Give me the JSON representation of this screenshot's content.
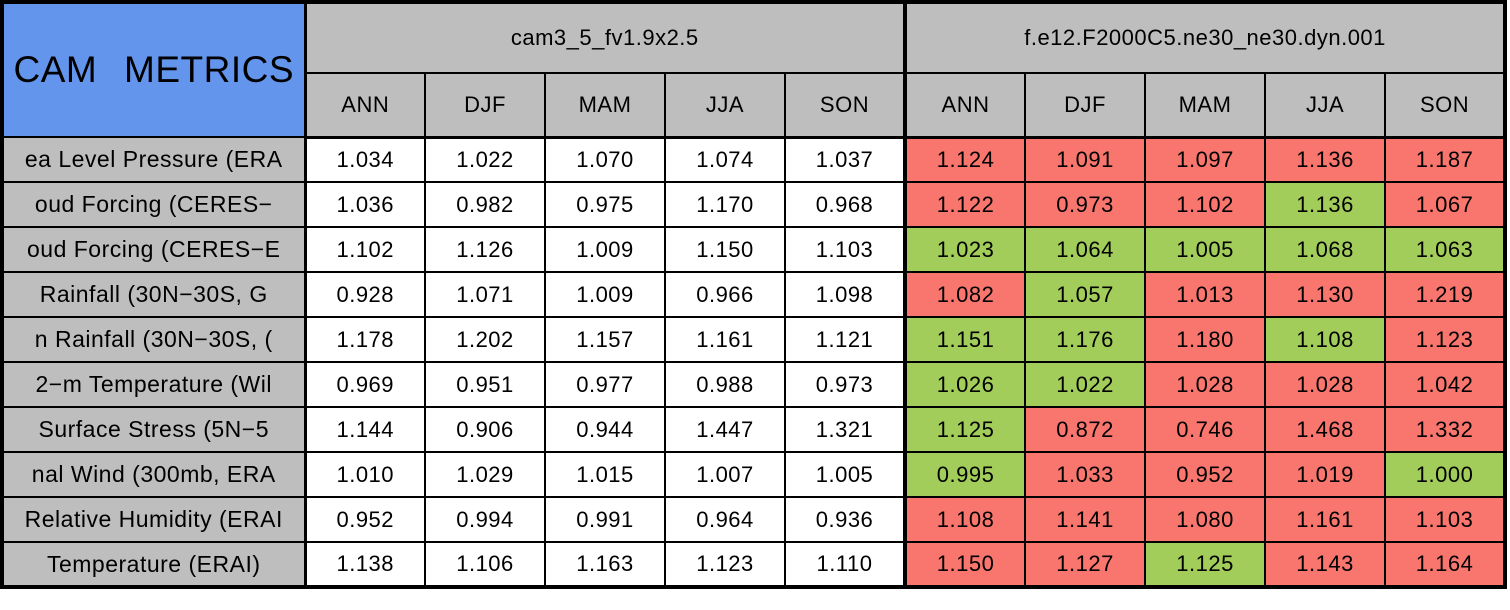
{
  "title": "CAM METRICS",
  "colors": {
    "title_bg": "#6495ED",
    "header_bg": "#BEBEBE",
    "red": "#F8766D",
    "green": "#A2CD5A",
    "border": "#000000",
    "neutral_cell": "#FFFFFF"
  },
  "chart_data": {
    "type": "table",
    "title": "CAM METRICS",
    "column_groups": [
      "cam3_5_fv1.9x2.5",
      "f.e12.F2000C5.ne30_ne30.dyn.001"
    ],
    "columns": [
      "ANN",
      "DJF",
      "MAM",
      "JJA",
      "SON",
      "ANN",
      "DJF",
      "MAM",
      "JJA",
      "SON"
    ],
    "legend_note": "left block cells white; right block cells colored red or green",
    "rows": [
      {
        "label": "ea Level Pressure (ERA",
        "values": [
          "1.034",
          "1.022",
          "1.070",
          "1.074",
          "1.037",
          "1.124",
          "1.091",
          "1.097",
          "1.136",
          "1.187"
        ],
        "cell_colors": [
          "white",
          "white",
          "white",
          "white",
          "white",
          "red",
          "red",
          "red",
          "red",
          "red"
        ]
      },
      {
        "label": "oud Forcing (CERES−",
        "values": [
          "1.036",
          "0.982",
          "0.975",
          "1.170",
          "0.968",
          "1.122",
          "0.973",
          "1.102",
          "1.136",
          "1.067"
        ],
        "cell_colors": [
          "white",
          "white",
          "white",
          "white",
          "white",
          "red",
          "red",
          "red",
          "green",
          "red"
        ]
      },
      {
        "label": "oud Forcing (CERES−E",
        "values": [
          "1.102",
          "1.126",
          "1.009",
          "1.150",
          "1.103",
          "1.023",
          "1.064",
          "1.005",
          "1.068",
          "1.063"
        ],
        "cell_colors": [
          "white",
          "white",
          "white",
          "white",
          "white",
          "green",
          "green",
          "green",
          "green",
          "green"
        ]
      },
      {
        "label": "Rainfall (30N−30S, G",
        "values": [
          "0.928",
          "1.071",
          "1.009",
          "0.966",
          "1.098",
          "1.082",
          "1.057",
          "1.013",
          "1.130",
          "1.219"
        ],
        "cell_colors": [
          "white",
          "white",
          "white",
          "white",
          "white",
          "red",
          "green",
          "red",
          "red",
          "red"
        ]
      },
      {
        "label": "n Rainfall (30N−30S, (",
        "values": [
          "1.178",
          "1.202",
          "1.157",
          "1.161",
          "1.121",
          "1.151",
          "1.176",
          "1.180",
          "1.108",
          "1.123"
        ],
        "cell_colors": [
          "white",
          "white",
          "white",
          "white",
          "white",
          "green",
          "green",
          "red",
          "green",
          "red"
        ]
      },
      {
        "label": "2−m Temperature (Wil",
        "values": [
          "0.969",
          "0.951",
          "0.977",
          "0.988",
          "0.973",
          "1.026",
          "1.022",
          "1.028",
          "1.028",
          "1.042"
        ],
        "cell_colors": [
          "white",
          "white",
          "white",
          "white",
          "white",
          "green",
          "green",
          "red",
          "red",
          "red"
        ]
      },
      {
        "label": "Surface Stress (5N−5",
        "values": [
          "1.144",
          "0.906",
          "0.944",
          "1.447",
          "1.321",
          "1.125",
          "0.872",
          "0.746",
          "1.468",
          "1.332"
        ],
        "cell_colors": [
          "white",
          "white",
          "white",
          "white",
          "white",
          "green",
          "red",
          "red",
          "red",
          "red"
        ]
      },
      {
        "label": "nal Wind (300mb, ERA",
        "values": [
          "1.010",
          "1.029",
          "1.015",
          "1.007",
          "1.005",
          "0.995",
          "1.033",
          "0.952",
          "1.019",
          "1.000"
        ],
        "cell_colors": [
          "white",
          "white",
          "white",
          "white",
          "white",
          "green",
          "red",
          "red",
          "red",
          "green"
        ]
      },
      {
        "label": "Relative Humidity (ERAI",
        "values": [
          "0.952",
          "0.994",
          "0.991",
          "0.964",
          "0.936",
          "1.108",
          "1.141",
          "1.080",
          "1.161",
          "1.103"
        ],
        "cell_colors": [
          "white",
          "white",
          "white",
          "white",
          "white",
          "red",
          "red",
          "red",
          "red",
          "red"
        ]
      },
      {
        "label": "Temperature (ERAI)",
        "values": [
          "1.138",
          "1.106",
          "1.163",
          "1.123",
          "1.110",
          "1.150",
          "1.127",
          "1.125",
          "1.143",
          "1.164"
        ],
        "cell_colors": [
          "white",
          "white",
          "white",
          "white",
          "white",
          "red",
          "red",
          "green",
          "red",
          "red"
        ]
      }
    ]
  }
}
